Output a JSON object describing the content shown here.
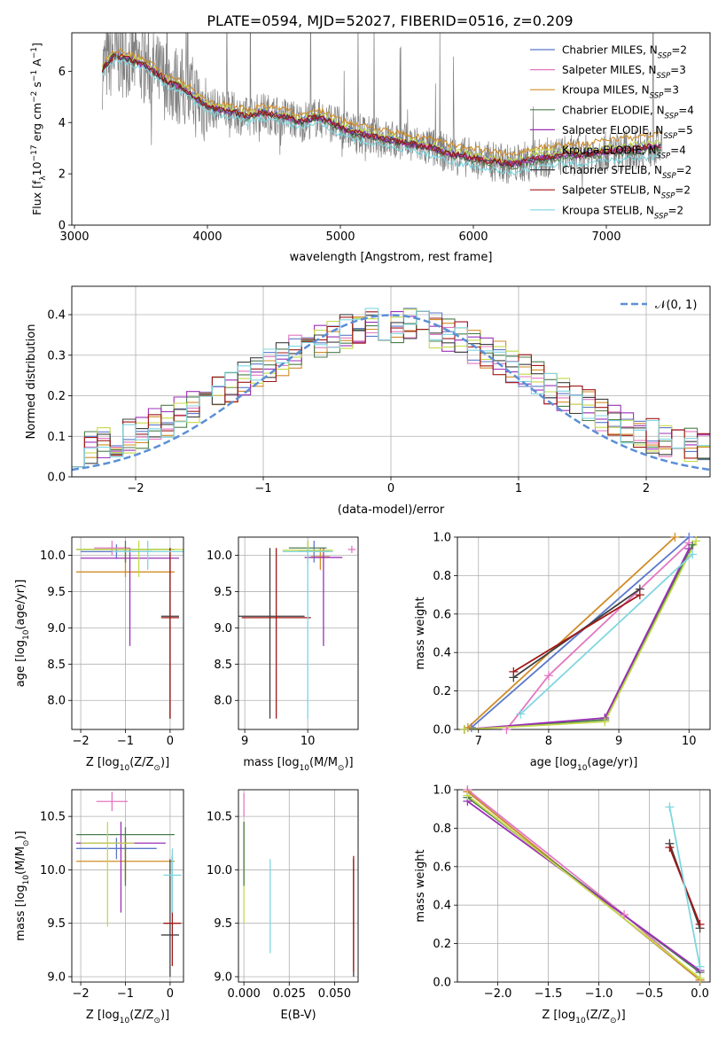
{
  "figure": {
    "title": "PLATE=0594, MJD=52027, FIBERID=0516, z=0.209"
  },
  "models": [
    {
      "name": "Chabrier MILES",
      "nssp": "2",
      "color": "#5b79c9"
    },
    {
      "name": "Salpeter MILES",
      "nssp": "3",
      "color": "#e377c2"
    },
    {
      "name": "Kroupa MILES",
      "nssp": "3",
      "color": "#d08d28"
    },
    {
      "name": "Chabrier ELODIE",
      "nssp": "4",
      "color": "#4c7d4c"
    },
    {
      "name": "Salpeter ELODIE",
      "nssp": "5",
      "color": "#9b30b8"
    },
    {
      "name": "Kroupa ELODIE",
      "nssp": "4",
      "color": "#c4d94a"
    },
    {
      "name": "Chabrier STELIB",
      "nssp": "2",
      "color": "#404040"
    },
    {
      "name": "Salpeter STELIB",
      "nssp": "2",
      "color": "#a01818"
    },
    {
      "name": "Kroupa STELIB",
      "nssp": "2",
      "color": "#7fd6e0"
    }
  ],
  "legend_ssp_prefix": "N",
  "legend_ssp_sub": "SSP",
  "chart_data": [
    {
      "id": "spectrum",
      "type": "line",
      "xlabel": "wavelength [Angstrom, rest frame]",
      "ylabel_parts": [
        "Flux [f",
        "λ",
        "10",
        "−17",
        " erg cm",
        "−2",
        " s",
        "−1",
        " A",
        "−1",
        "]"
      ],
      "xlim": [
        2980,
        7780
      ],
      "ylim": [
        0,
        7.5
      ],
      "xticks": [
        3000,
        4000,
        5000,
        6000,
        7000
      ],
      "yticks": [
        0,
        2,
        4,
        6
      ],
      "data_color": "#808080",
      "continuum": [
        [
          3210,
          6.1
        ],
        [
          3300,
          6.6
        ],
        [
          3400,
          6.5
        ],
        [
          3500,
          6.3
        ],
        [
          3600,
          6.0
        ],
        [
          3700,
          5.6
        ],
        [
          3800,
          5.4
        ],
        [
          3900,
          5.0
        ],
        [
          4000,
          4.6
        ],
        [
          4100,
          4.5
        ],
        [
          4200,
          4.4
        ],
        [
          4300,
          4.2
        ],
        [
          4400,
          4.4
        ],
        [
          4500,
          4.3
        ],
        [
          4600,
          4.2
        ],
        [
          4700,
          4.0
        ],
        [
          4800,
          4.2
        ],
        [
          4900,
          4.1
        ],
        [
          5000,
          3.8
        ],
        [
          5100,
          3.6
        ],
        [
          5200,
          3.5
        ],
        [
          5300,
          3.4
        ],
        [
          5400,
          3.3
        ],
        [
          5500,
          3.2
        ],
        [
          5600,
          3.1
        ],
        [
          5700,
          3.0
        ],
        [
          5800,
          2.8
        ],
        [
          5900,
          2.7
        ],
        [
          6000,
          2.6
        ],
        [
          6100,
          2.5
        ],
        [
          6200,
          2.45
        ],
        [
          6300,
          2.35
        ],
        [
          6400,
          2.5
        ],
        [
          6500,
          2.6
        ],
        [
          6600,
          2.65
        ],
        [
          6700,
          2.75
        ],
        [
          6800,
          2.7
        ],
        [
          6900,
          2.8
        ],
        [
          7000,
          2.85
        ],
        [
          7100,
          2.9
        ],
        [
          7200,
          2.95
        ],
        [
          7300,
          3.0
        ],
        [
          7400,
          3.05
        ]
      ]
    },
    {
      "id": "residuals",
      "type": "area",
      "xlabel": "(data-model)/error",
      "ylabel": "Normed distribution",
      "xlim": [
        -2.5,
        2.5
      ],
      "ylim": [
        0,
        0.47
      ],
      "xticks": [
        -2,
        -1,
        0,
        1,
        2
      ],
      "yticks": [
        0.0,
        0.1,
        0.2,
        0.3,
        0.4
      ],
      "gaussian_label": "𝒩(0, 1)",
      "gaussian_color": "#5b8fd6",
      "bin_width": 0.1
    },
    {
      "id": "age_vs_z",
      "type": "scatter",
      "xlabel_parts": [
        "Z [log",
        "10",
        "(Z/Z",
        "⊙",
        ")]"
      ],
      "ylabel_parts": [
        "age  [log",
        "10",
        "(age/yr)]"
      ],
      "xlim": [
        -2.2,
        0.3
      ],
      "ylim": [
        7.6,
        10.25
      ],
      "xticks": [
        -2,
        -1,
        0
      ],
      "yticks": [
        8.0,
        8.5,
        9.0,
        9.5,
        10.0
      ],
      "points": [
        {
          "m": 0,
          "x": -1.2,
          "y": 10.05,
          "xerr": 0.8,
          "ylo": 9.95,
          "yhi": 10.15
        },
        {
          "m": 1,
          "x": -1.3,
          "y": 10.1,
          "xerr": 0.4,
          "ylo": 10.0,
          "yhi": 10.2
        },
        {
          "m": 2,
          "x": -1.0,
          "y": 9.77,
          "xerr": 1.1,
          "ylo": 9.7,
          "yhi": 10.1
        },
        {
          "m": 3,
          "x": -1.0,
          "y": 10.08,
          "xerr": 1.1,
          "ylo": 9.9,
          "yhi": 10.2
        },
        {
          "m": 4,
          "x": -0.9,
          "y": 9.96,
          "xerr": 1.1,
          "ylo": 8.75,
          "yhi": 10.1
        },
        {
          "m": 5,
          "x": -0.7,
          "y": 10.08,
          "xerr": 1.4,
          "ylo": 9.7,
          "yhi": 10.2
        },
        {
          "m": 6,
          "x": 0.0,
          "y": 9.16,
          "xerr": 0.2,
          "ylo": 7.75,
          "yhi": 10.1
        },
        {
          "m": 7,
          "x": 0.0,
          "y": 9.14,
          "xerr": 0.2,
          "ylo": 7.75,
          "yhi": 10.1
        },
        {
          "m": 8,
          "x": -0.5,
          "y": 10.05,
          "xerr": 0.8,
          "ylo": 9.8,
          "yhi": 10.2
        }
      ]
    },
    {
      "id": "age_vs_mass",
      "type": "scatter",
      "xlabel_parts": [
        "mass [log",
        "10",
        "(M/M",
        "⊙",
        ")]"
      ],
      "xlim": [
        8.9,
        10.8
      ],
      "ylim": [
        7.6,
        10.25
      ],
      "xticks": [
        9,
        10
      ],
      "yticks": [
        8.0,
        8.5,
        9.0,
        9.5,
        10.0
      ],
      "points": [
        {
          "m": 0,
          "x": 10.1,
          "y": 10.05,
          "xerr": 0.25,
          "ylo": 9.9,
          "yhi": 10.2
        },
        {
          "m": 1,
          "x": 10.7,
          "y": 10.08,
          "xerr": 0.06,
          "ylo": 10.03,
          "yhi": 10.13
        },
        {
          "m": 2,
          "x": 10.2,
          "y": 9.98,
          "xerr": 0.15,
          "ylo": 9.8,
          "yhi": 10.1
        },
        {
          "m": 3,
          "x": 10.0,
          "y": 10.1,
          "xerr": 0.3,
          "ylo": 9.95,
          "yhi": 10.2
        },
        {
          "m": 4,
          "x": 10.25,
          "y": 9.97,
          "xerr": 0.3,
          "ylo": 8.75,
          "yhi": 10.1
        },
        {
          "m": 5,
          "x": 10.0,
          "y": 10.07,
          "xerr": 0.4,
          "ylo": 9.9,
          "yhi": 10.2
        },
        {
          "m": 6,
          "x": 9.4,
          "y": 9.16,
          "xerr": 0.55,
          "ylo": 7.75,
          "yhi": 10.1
        },
        {
          "m": 7,
          "x": 9.5,
          "y": 9.14,
          "xerr": 0.55,
          "ylo": 7.75,
          "yhi": 10.1
        },
        {
          "m": 8,
          "x": 10.0,
          "y": 10.05,
          "xerr": 0.4,
          "ylo": 7.75,
          "yhi": 10.1
        }
      ]
    },
    {
      "id": "weight_vs_age",
      "type": "line",
      "xlabel_parts": [
        "age  [log",
        "10",
        "(age/yr)]"
      ],
      "ylabel": "mass weight",
      "xlim": [
        6.7,
        10.3
      ],
      "ylim": [
        0,
        1.0
      ],
      "xticks": [
        7,
        8,
        9,
        10
      ],
      "yticks": [
        0.0,
        0.2,
        0.4,
        0.6,
        0.8,
        1.0
      ],
      "series": [
        {
          "m": 0,
          "points": [
            [
              6.9,
              0.01
            ],
            [
              10.0,
              1.0
            ]
          ]
        },
        {
          "m": 1,
          "points": [
            [
              7.4,
              0.0
            ],
            [
              8.0,
              0.28
            ],
            [
              10.0,
              0.97
            ]
          ]
        },
        {
          "m": 2,
          "points": [
            [
              6.85,
              0.01
            ],
            [
              9.8,
              1.0
            ]
          ]
        },
        {
          "m": 3,
          "points": [
            [
              6.8,
              0.0
            ],
            [
              8.8,
              0.05
            ],
            [
              10.05,
              0.96
            ]
          ]
        },
        {
          "m": 4,
          "points": [
            [
              6.8,
              0.0
            ],
            [
              8.8,
              0.06
            ],
            [
              10.0,
              0.94
            ]
          ]
        },
        {
          "m": 5,
          "points": [
            [
              6.8,
              0.0
            ],
            [
              8.8,
              0.04
            ],
            [
              10.1,
              0.98
            ]
          ]
        },
        {
          "m": 6,
          "points": [
            [
              7.5,
              0.27
            ],
            [
              9.3,
              0.73
            ]
          ]
        },
        {
          "m": 7,
          "points": [
            [
              7.5,
              0.3
            ],
            [
              9.3,
              0.7
            ]
          ]
        },
        {
          "m": 8,
          "points": [
            [
              7.6,
              0.08
            ],
            [
              10.05,
              0.91
            ]
          ]
        }
      ]
    },
    {
      "id": "mass_vs_z",
      "type": "scatter",
      "xlabel_parts": [
        "Z [log",
        "10",
        "(Z/Z",
        "⊙",
        ")]"
      ],
      "ylabel_parts": [
        "mass [log",
        "10",
        "(M/M",
        "⊙",
        ")]"
      ],
      "xlim": [
        -2.2,
        0.3
      ],
      "ylim": [
        8.95,
        10.75
      ],
      "xticks": [
        -2,
        -1,
        0
      ],
      "yticks": [
        9.0,
        9.5,
        10.0,
        10.5
      ],
      "points": [
        {
          "m": 0,
          "x": -1.2,
          "y": 10.2,
          "xerr": 0.9,
          "ylo": 10.1,
          "yhi": 10.3
        },
        {
          "m": 1,
          "x": -1.3,
          "y": 10.64,
          "xerr": 0.35,
          "ylo": 10.55,
          "yhi": 10.73
        },
        {
          "m": 2,
          "x": -1.0,
          "y": 10.08,
          "xerr": 1.1,
          "ylo": 9.9,
          "yhi": 10.3
        },
        {
          "m": 3,
          "x": -1.0,
          "y": 10.33,
          "xerr": 1.1,
          "ylo": 9.85,
          "yhi": 10.4
        },
        {
          "m": 4,
          "x": -1.1,
          "y": 10.25,
          "xerr": 1.0,
          "ylo": 9.6,
          "yhi": 10.45
        },
        {
          "m": 5,
          "x": -1.4,
          "y": 10.25,
          "xerr": 0.6,
          "ylo": 9.47,
          "yhi": 10.45
        },
        {
          "m": 6,
          "x": 0.0,
          "y": 9.39,
          "xerr": 0.2,
          "ylo": 9.0,
          "yhi": 10.1
        },
        {
          "m": 7,
          "x": 0.05,
          "y": 9.5,
          "xerr": 0.2,
          "ylo": 9.1,
          "yhi": 10.13
        },
        {
          "m": 8,
          "x": 0.05,
          "y": 9.95,
          "xerr": 0.2,
          "ylo": 9.6,
          "yhi": 10.2
        }
      ]
    },
    {
      "id": "mass_vs_ebv",
      "type": "scatter",
      "xlabel": "E(B-V)",
      "xlim": [
        -0.003,
        0.063
      ],
      "ylim": [
        8.95,
        10.75
      ],
      "xticks": [
        0.0,
        0.025,
        0.05
      ],
      "xtick_labels": [
        "0.000",
        "0.025",
        "0.050"
      ],
      "yticks": [
        9.0,
        9.5,
        10.0,
        10.5
      ],
      "points": [
        {
          "m": 1,
          "x": 0.0,
          "y": 10.64,
          "ylo": 10.5,
          "yhi": 10.72
        },
        {
          "m": 2,
          "x": 0.0,
          "y": 10.1,
          "ylo": 9.9,
          "yhi": 10.45
        },
        {
          "m": 5,
          "x": 0.0,
          "y": 10.2,
          "ylo": 9.5,
          "yhi": 10.45
        },
        {
          "m": 3,
          "x": 0.0,
          "y": 10.3,
          "ylo": 9.85,
          "yhi": 10.45
        },
        {
          "m": 8,
          "x": 0.0145,
          "y": 9.9,
          "ylo": 9.22,
          "yhi": 10.1
        },
        {
          "m": 6,
          "x": 0.0605,
          "y": 9.4,
          "ylo": 9.0,
          "yhi": 10.1
        },
        {
          "m": 7,
          "x": 0.0605,
          "y": 9.5,
          "ylo": 9.05,
          "yhi": 10.13
        }
      ]
    },
    {
      "id": "weight_vs_z",
      "type": "line",
      "xlabel_parts": [
        "Z [log",
        "10",
        "(Z/Z",
        "⊙",
        ")]"
      ],
      "ylabel": "mass weight",
      "xlim": [
        -2.4,
        0.1
      ],
      "ylim": [
        0,
        1.0
      ],
      "xticks": [
        -2.0,
        -1.5,
        -1.0,
        -0.5,
        0.0
      ],
      "series": [
        {
          "m": 0,
          "points": [
            [
              -2.3,
              0.99
            ],
            [
              0.0,
              0.01
            ]
          ]
        },
        {
          "m": 1,
          "points": [
            [
              -2.3,
              1.0
            ],
            [
              -0.75,
              0.35
            ],
            [
              0.0,
              0.01
            ]
          ]
        },
        {
          "m": 2,
          "points": [
            [
              -2.3,
              0.99
            ],
            [
              0.0,
              0.01
            ]
          ]
        },
        {
          "m": 3,
          "points": [
            [
              -2.3,
              0.96
            ],
            [
              0.0,
              0.05
            ]
          ]
        },
        {
          "m": 4,
          "points": [
            [
              -2.3,
              0.94
            ],
            [
              0.0,
              0.06
            ]
          ]
        },
        {
          "m": 5,
          "points": [
            [
              -2.3,
              0.97
            ],
            [
              0.0,
              0.02
            ]
          ]
        },
        {
          "m": 6,
          "points": [
            [
              -0.3,
              0.72
            ],
            [
              0.0,
              0.28
            ]
          ]
        },
        {
          "m": 7,
          "points": [
            [
              -0.3,
              0.7
            ],
            [
              0.0,
              0.3
            ]
          ]
        },
        {
          "m": 8,
          "points": [
            [
              -0.3,
              0.91
            ],
            [
              0.0,
              0.08
            ]
          ]
        }
      ]
    }
  ]
}
